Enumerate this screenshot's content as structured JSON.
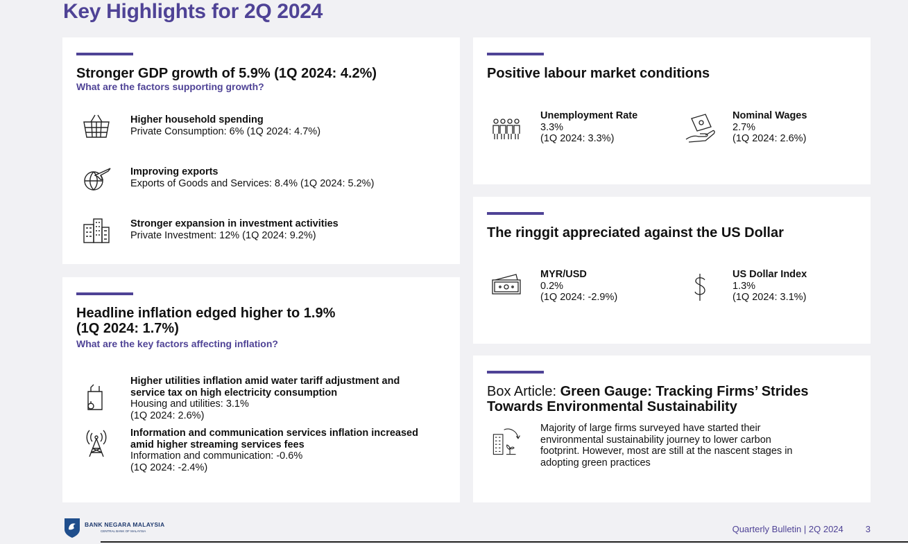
{
  "page": {
    "title": "Key Highlights for 2Q 2024",
    "footer": {
      "publication": "Quarterly Bulletin | 2Q 2024",
      "page_number": "3",
      "bank_name": "BANK NEGARA MALAYSIA",
      "bank_tagline": "CENTRAL BANK OF MALAYSIA"
    }
  },
  "gdp": {
    "heading": "Stronger GDP growth of 5.9% (1Q 2024: 4.2%)",
    "subheading": "What are the factors supporting growth?",
    "items": [
      {
        "icon": "shopping-basket-icon",
        "title": "Higher household spending",
        "detail": "Private Consumption: 6% (1Q 2024: 4.7%)"
      },
      {
        "icon": "globe-plane-icon",
        "title": "Improving exports",
        "detail": "Exports of Goods and Services: 8.4% (1Q 2024: 5.2%)"
      },
      {
        "icon": "buildings-icon",
        "title": "Stronger expansion in investment activities",
        "detail": "Private Investment: 12% (1Q 2024: 9.2%)"
      }
    ]
  },
  "inflation": {
    "heading_line1": "Headline inflation edged higher to 1.9%",
    "heading_line2": "(1Q 2024: 1.7%)",
    "subheading": "What are the key factors affecting inflation?",
    "items": [
      {
        "icon": "grocery-bag-icon",
        "title_line1": "Higher utilities inflation amid water tariff adjustment and",
        "title_line2": "service tax on high electricity consumption",
        "detail_line1": "Housing and utilities: 3.1%",
        "detail_line2": "(1Q 2024: 2.6%)"
      },
      {
        "icon": "signal-tower-icon",
        "title_line1": "Information and communication services inflation increased",
        "title_line2": "amid higher streaming services fees",
        "detail_line1": "Information and communication: -0.6%",
        "detail_line2": "(1Q 2024: -2.4%)"
      }
    ]
  },
  "labour": {
    "heading": "Positive labour market conditions",
    "items": [
      {
        "icon": "people-group-icon",
        "title": "Unemployment Rate",
        "value": "3.3%",
        "prior": "(1Q 2024: 3.3%)"
      },
      {
        "icon": "hand-money-icon",
        "title": "Nominal Wages",
        "value": "2.7%",
        "prior": "(1Q 2024: 2.6%)"
      }
    ]
  },
  "ringgit": {
    "heading": "The ringgit appreciated against the US Dollar",
    "items": [
      {
        "icon": "banknote-icon",
        "title": "MYR/USD",
        "value": "0.2%",
        "prior": "(1Q 2024: -2.9%)"
      },
      {
        "icon": "dollar-sign-icon",
        "title": "US Dollar Index",
        "value": "1.3%",
        "prior": "(1Q 2024: 3.1%)"
      }
    ]
  },
  "box_article": {
    "prefix": "Box Article: ",
    "title_line1": "Green Gauge: Tracking Firms’ Strides",
    "title_line2": "Towards Environmental Sustainability",
    "icon": "green-building-icon",
    "body_lines": [
      "Majority of large firms surveyed have started their",
      "environmental sustainability journey to lower carbon",
      "footprint. However, most are still at the nascent stages in",
      "adopting green practices"
    ]
  },
  "colors": {
    "accent": "#4f4396",
    "background": "#f1f1f4",
    "card": "#ffffff",
    "text": "#111111"
  }
}
